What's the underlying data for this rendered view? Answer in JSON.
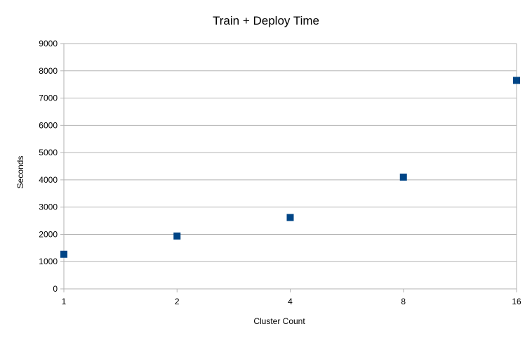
{
  "chart_data": {
    "type": "scatter",
    "title": "Train + Deploy Time",
    "xlabel": "Cluster Count",
    "ylabel": "Seconds",
    "x_scale": "log2",
    "x_ticks": [
      "1",
      "2",
      "4",
      "8",
      "16"
    ],
    "y_ticks": [
      "0",
      "1000",
      "2000",
      "3000",
      "4000",
      "5000",
      "6000",
      "7000",
      "8000",
      "9000"
    ],
    "ylim": [
      0,
      9000
    ],
    "xlim": [
      1,
      16
    ],
    "grid": "horizontal",
    "legend": "none",
    "marker": "square",
    "marker_color": "#004586",
    "series": [
      {
        "x": [
          1,
          2,
          4,
          8,
          16
        ],
        "y": [
          1270,
          1940,
          2620,
          4100,
          7650
        ]
      }
    ]
  }
}
